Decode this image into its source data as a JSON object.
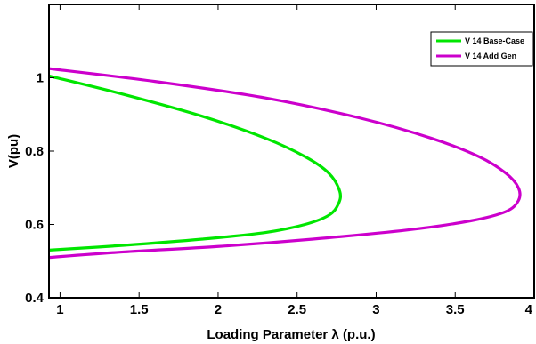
{
  "chart_data": {
    "type": "line",
    "xlabel": "Loading Parameter λ (p.u.)",
    "ylabel": "V(pu)",
    "xlim": [
      0.93,
      4.0
    ],
    "ylim": [
      0.4,
      1.2
    ],
    "xticks": [
      1,
      1.5,
      2,
      2.5,
      3,
      3.5,
      4
    ],
    "xtick_labels": [
      "1",
      "1.5",
      "2",
      "2.5",
      "3",
      "3.5",
      "4"
    ],
    "yticks": [
      0.4,
      0.6,
      0.8,
      1.0
    ],
    "ytick_labels": [
      "0.4",
      "0.6",
      "0.8",
      "1"
    ],
    "legend_position": "top-right",
    "series": [
      {
        "name": "V 14 Base-Case",
        "color": "#00e600",
        "x": [
          0.93,
          1.4,
          1.9,
          2.3,
          2.55,
          2.7,
          2.77,
          2.76,
          2.7,
          2.55,
          2.3,
          1.9,
          1.4,
          0.93
        ],
        "y": [
          1.005,
          0.955,
          0.895,
          0.835,
          0.785,
          0.74,
          0.69,
          0.655,
          0.625,
          0.6,
          0.578,
          0.56,
          0.543,
          0.53
        ]
      },
      {
        "name": "V 14 Add Gen",
        "color": "#cc00cc",
        "x": [
          0.93,
          1.6,
          2.3,
          2.9,
          3.35,
          3.65,
          3.82,
          3.9,
          3.9,
          3.82,
          3.6,
          3.2,
          2.6,
          2.0,
          1.4,
          0.93
        ],
        "y": [
          1.025,
          0.99,
          0.945,
          0.89,
          0.835,
          0.785,
          0.74,
          0.7,
          0.665,
          0.635,
          0.61,
          0.585,
          0.56,
          0.54,
          0.525,
          0.51
        ]
      }
    ]
  }
}
